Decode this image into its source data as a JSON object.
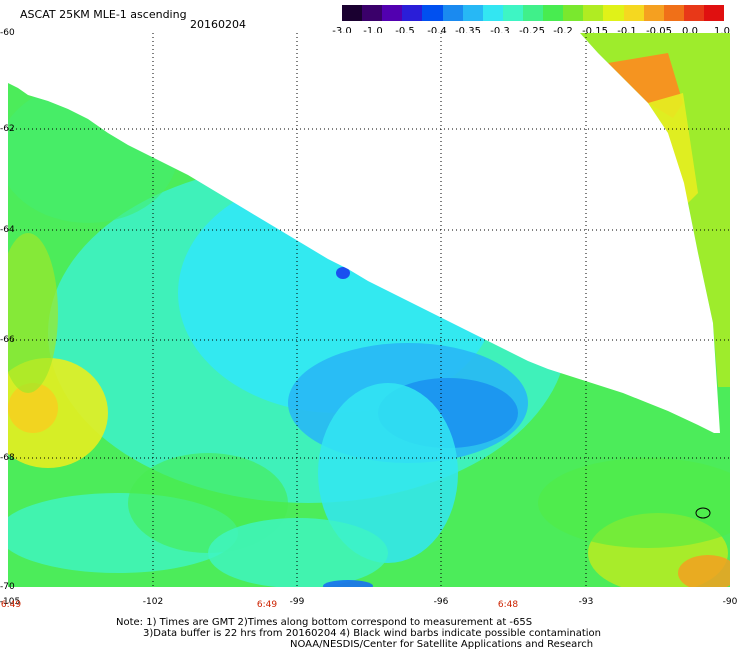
{
  "header": {
    "title": "ASCAT 25KM MLE-1 ascending",
    "date": "20160204"
  },
  "colorbar": {
    "labels": [
      "-3.0",
      "-1.0",
      "-0.5",
      "-0.4",
      "-0.35",
      "-0.3",
      "-0.25",
      "-0.2",
      "-0.15",
      "-0.1",
      "-0.05",
      "0.0",
      "1.0"
    ],
    "colors": [
      "#1a0030",
      "#3a006a",
      "#5200b0",
      "#2a1ed8",
      "#0050f0",
      "#1a8af0",
      "#27b8f5",
      "#33e6f2",
      "#3ef5c4",
      "#40f08a",
      "#48ec50",
      "#7ae82e",
      "#b0ec22",
      "#e0f218",
      "#f5d820",
      "#f5a020",
      "#f07018",
      "#e83818",
      "#e01010"
    ]
  },
  "map": {
    "y_ticks": [
      "-60",
      "-62",
      "-64",
      "-66",
      "-68",
      "-70"
    ],
    "x_ticks": [
      "-105",
      "-102",
      "-99",
      "-96",
      "-93",
      "-90"
    ],
    "times": [
      "6:49",
      "6:49",
      "6:48"
    ]
  },
  "notes": {
    "line1": "Note: 1) Times are GMT 2)Times along bottom correspond to measurement at -65S",
    "line2": "3)Data buffer is 22 hrs from 20160204 4) Black wind barbs indicate possible contamination",
    "line3": "NOAA/NESDIS/Center for Satellite Applications and Research"
  }
}
